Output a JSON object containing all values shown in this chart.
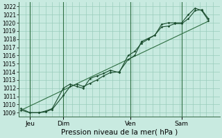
{
  "title": "",
  "xlabel": "Pression niveau de la mer( hPa )",
  "ylim": [
    1008.5,
    1022.5
  ],
  "xlim": [
    0.0,
    9.0
  ],
  "bg_color": "#c8eae0",
  "grid_color": "#99ccbb",
  "line_color": "#1a4d2e",
  "trend_color": "#2e6e42",
  "day_labels": [
    "Jeu",
    "Dim",
    "Ven",
    "Sam"
  ],
  "day_positions": [
    0.5,
    2.0,
    5.0,
    7.3
  ],
  "vline_positions": [
    0.5,
    2.0,
    5.0,
    7.3
  ],
  "yticks": [
    1009,
    1010,
    1011,
    1012,
    1013,
    1014,
    1015,
    1016,
    1017,
    1018,
    1019,
    1020,
    1021,
    1022
  ],
  "line1_x": [
    0.1,
    0.5,
    0.9,
    1.2,
    1.5,
    2.0,
    2.3,
    2.6,
    2.9,
    3.2,
    3.5,
    3.8,
    4.1,
    4.5,
    4.9,
    5.2,
    5.5,
    5.8,
    6.1,
    6.4,
    6.7,
    7.0,
    7.3,
    7.6,
    7.9,
    8.2,
    8.5
  ],
  "line1_y": [
    1009.5,
    1009.0,
    1009.0,
    1009.1,
    1009.4,
    1011.1,
    1012.2,
    1012.5,
    1012.2,
    1012.6,
    1013.0,
    1013.5,
    1013.9,
    1014.0,
    1015.5,
    1016.0,
    1017.7,
    1018.1,
    1018.5,
    1019.5,
    1019.6,
    1019.9,
    1019.9,
    1020.5,
    1021.5,
    1021.6,
    1020.5
  ],
  "line2_x": [
    0.1,
    0.5,
    0.9,
    1.2,
    1.5,
    2.0,
    2.3,
    2.6,
    2.9,
    3.2,
    3.5,
    3.8,
    4.1,
    4.5,
    4.9,
    5.2,
    5.5,
    5.8,
    6.1,
    6.4,
    6.7,
    7.0,
    7.3,
    7.6,
    7.9,
    8.2,
    8.5
  ],
  "line2_y": [
    1009.3,
    1009.0,
    1009.0,
    1009.2,
    1009.5,
    1012.0,
    1012.5,
    1012.2,
    1012.0,
    1013.2,
    1013.5,
    1013.8,
    1014.2,
    1013.9,
    1016.0,
    1016.5,
    1017.5,
    1018.0,
    1018.5,
    1019.8,
    1020.0,
    1020.0,
    1020.0,
    1021.0,
    1021.8,
    1021.5,
    1020.3
  ],
  "trend_x": [
    0.1,
    8.5
  ],
  "trend_y": [
    1009.3,
    1020.2
  ],
  "xlabel_fontsize": 7.5,
  "ytick_fontsize": 5.5,
  "xtick_fontsize": 6.5
}
